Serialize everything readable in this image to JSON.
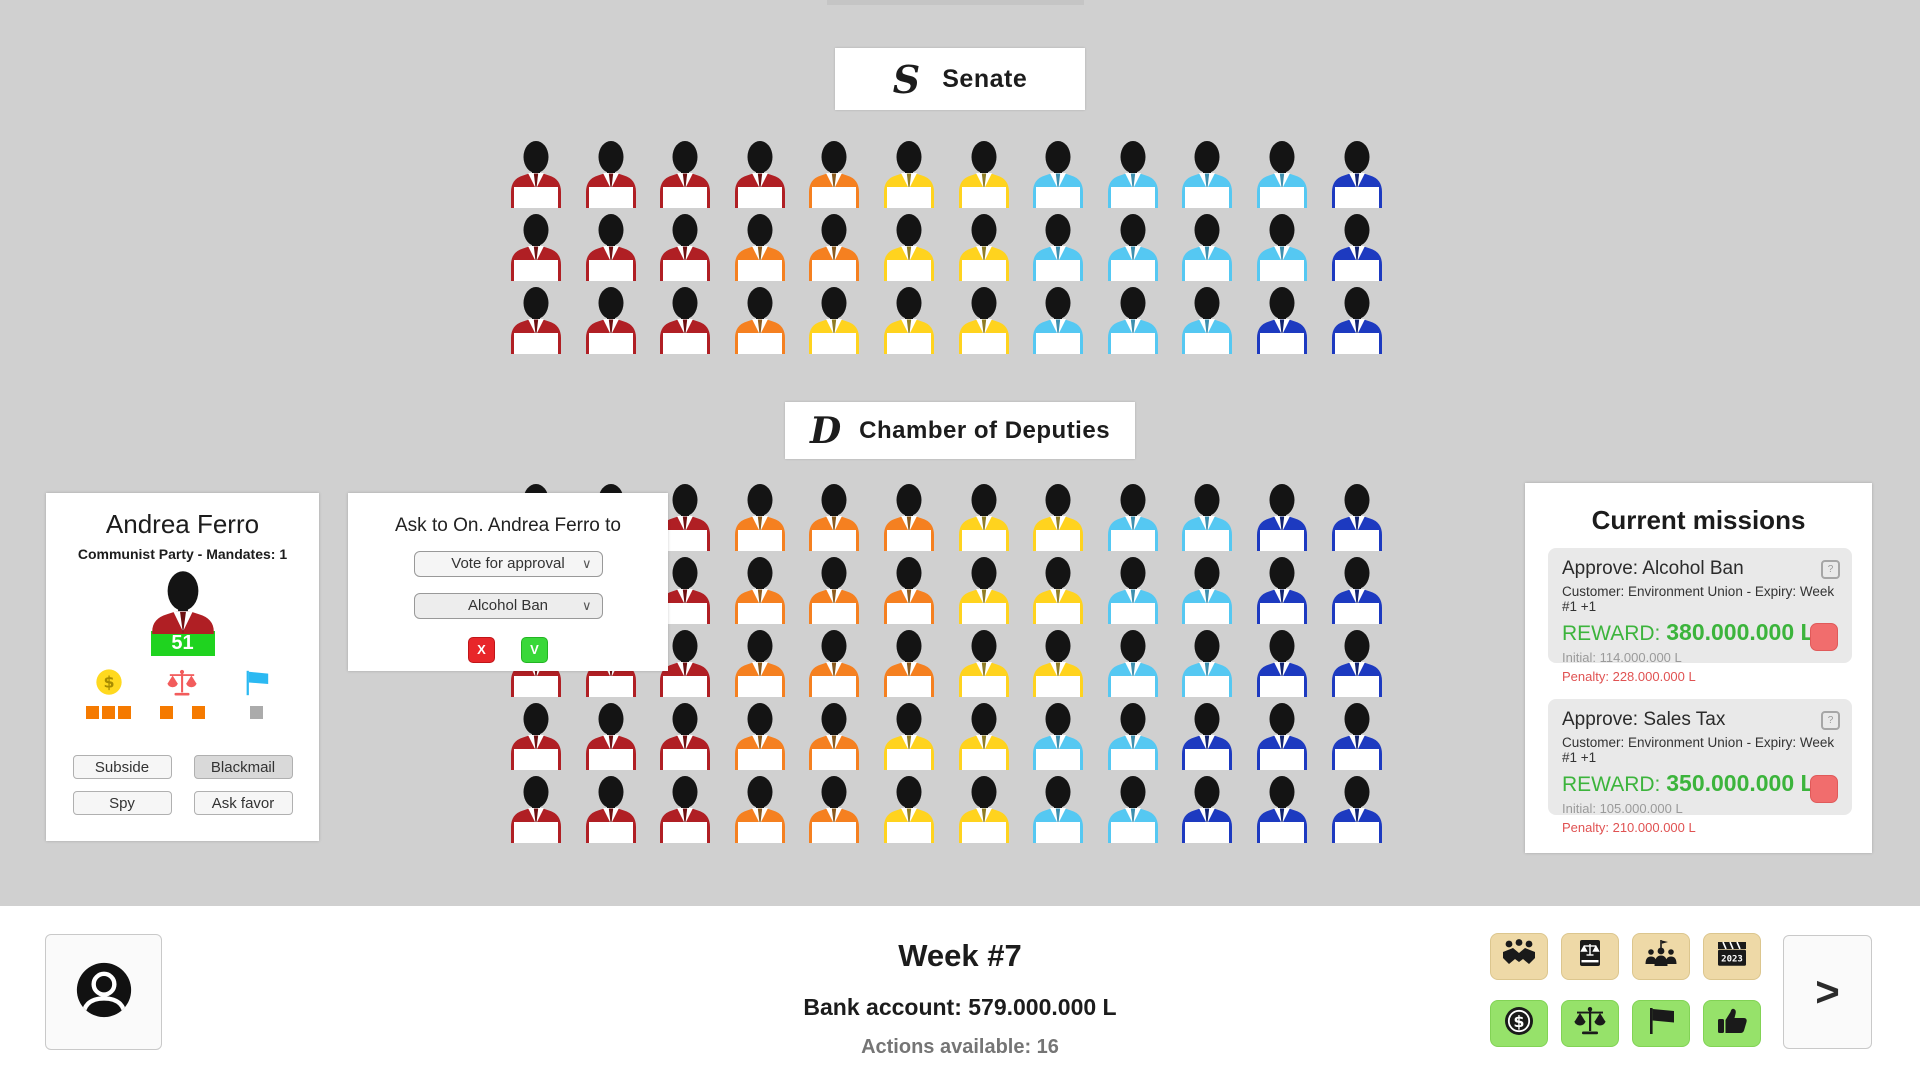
{
  "page": {
    "background": "#d0d0d0"
  },
  "party_colors": {
    "red": {
      "suit": "#b01f24",
      "tie": "#6e1012"
    },
    "orange": {
      "suit": "#f58020",
      "tie": "#8a5a1e"
    },
    "yellow": {
      "suit": "#ffd31e",
      "tie": "#8f7d26"
    },
    "cyan": {
      "suit": "#55c8f2",
      "tie": "#3d8fae"
    },
    "blue": {
      "suit": "#1d3ac0",
      "tie": "#122470"
    }
  },
  "senate": {
    "initial": "S",
    "label": "Senate",
    "rows": [
      [
        "red",
        "red",
        "red",
        "red",
        "orange",
        "yellow",
        "yellow",
        "cyan",
        "cyan",
        "cyan",
        "cyan",
        "blue"
      ],
      [
        "red",
        "red",
        "red",
        "orange",
        "orange",
        "yellow",
        "yellow",
        "cyan",
        "cyan",
        "cyan",
        "cyan",
        "blue"
      ],
      [
        "red",
        "red",
        "red",
        "orange",
        "yellow",
        "yellow",
        "yellow",
        "cyan",
        "cyan",
        "cyan",
        "blue",
        "blue"
      ]
    ]
  },
  "chamber": {
    "initial": "D",
    "label": "Chamber of Deputies",
    "rows": [
      [
        "red",
        "red",
        "red",
        "orange",
        "orange",
        "orange",
        "yellow",
        "yellow",
        "cyan",
        "cyan",
        "blue",
        "blue"
      ],
      [
        "red",
        "red",
        "red",
        "orange",
        "orange",
        "orange",
        "yellow",
        "yellow",
        "cyan",
        "cyan",
        "blue",
        "blue"
      ],
      [
        "red",
        "red",
        "red",
        "orange",
        "orange",
        "orange",
        "yellow",
        "yellow",
        "cyan",
        "cyan",
        "blue",
        "blue"
      ],
      [
        "red",
        "red",
        "red",
        "orange",
        "orange",
        "yellow",
        "yellow",
        "cyan",
        "cyan",
        "blue",
        "blue",
        "blue"
      ],
      [
        "red",
        "red",
        "red",
        "orange",
        "orange",
        "yellow",
        "yellow",
        "cyan",
        "cyan",
        "blue",
        "blue",
        "blue"
      ]
    ]
  },
  "inspector": {
    "name": "Andrea Ferro",
    "subtitle": "Communist Party - Mandates: 1",
    "approval": "51",
    "approval_color": "#1fd31f",
    "stats": [
      {
        "icon": "coin-icon",
        "squares": [
          "orange",
          "orange",
          "orange"
        ]
      },
      {
        "icon": "scales-icon",
        "squares": [
          "orange",
          "gap",
          "orange"
        ]
      },
      {
        "icon": "flag-icon",
        "squares": [
          "grey"
        ]
      }
    ],
    "buttons": {
      "subside": "Subside",
      "blackmail": "Blackmail",
      "spy": "Spy",
      "ask_favor": "Ask favor"
    }
  },
  "dialog": {
    "title": "Ask to On. Andrea Ferro to",
    "action_selected": "Vote for approval",
    "bill_selected": "Alcohol Ban",
    "cancel_label": "X",
    "confirm_label": "V",
    "cancel_color": "#e8262a",
    "confirm_color": "#39d839"
  },
  "missions": {
    "title": "Current missions",
    "reward_color": "#3cb43c",
    "penalty_color": "#e05252",
    "items": [
      {
        "title": "Approve: Alcohol Ban",
        "customer": "Customer: Environment Union - Expiry: Week #1 +1",
        "reward_label": "REWARD:",
        "reward_value": "380.000.000 L",
        "initial": "Initial: 114.000.000 L",
        "penalty": "Penalty: 228.000.000 L",
        "help_icon": "?"
      },
      {
        "title": "Approve: Sales Tax",
        "customer": "Customer: Environment Union - Expiry: Week #1 +1",
        "reward_label": "REWARD:",
        "reward_value": "350.000.000 L",
        "initial": "Initial: 105.000.000 L",
        "penalty": "Penalty: 210.000.000 L",
        "help_icon": "?"
      }
    ]
  },
  "status_bar": {
    "week": "Week #7",
    "bank": "Bank account: 579.000.000 L",
    "actions": "Actions available: 16",
    "next_label": ">"
  },
  "toolbar": {
    "top_row_icons": [
      "handshake-icon",
      "law-book-icon",
      "group-flag-icon",
      "clapperboard-2023-icon"
    ],
    "bottom_row_icons": [
      "money-icon",
      "justice-icon",
      "flag-icon",
      "thumbs-up-icon"
    ],
    "top_color": "#eed9a7",
    "bottom_color": "#96e26a",
    "clapper_text": "2023"
  }
}
